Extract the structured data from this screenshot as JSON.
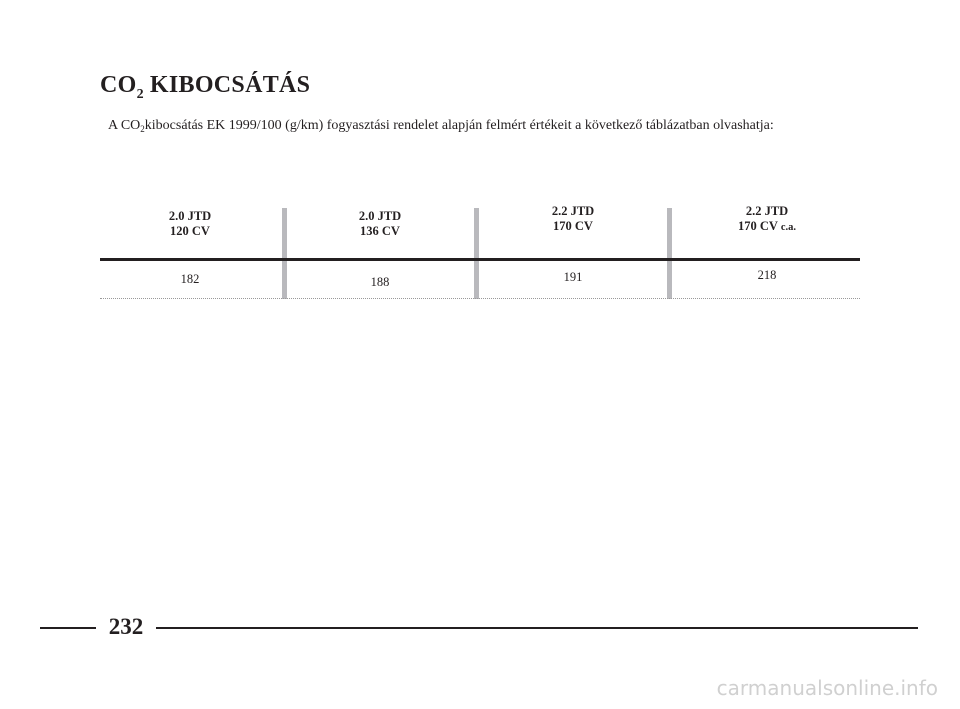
{
  "header": {
    "title": {
      "main": "CO",
      "subscript": "2",
      "rest": "KIBOCSÁTÁS"
    }
  },
  "intro": {
    "before": "A CO",
    "subscript": "2",
    "after": "kibocsátás EK 1999/100 (g/km) fogyasztási rendelet alapján felmért értékeit a következő táblázatban olvashatja:"
  },
  "table": {
    "columns": [
      {
        "model": "2.0 JTD",
        "power": "120 CV",
        "value": 182
      },
      {
        "model": "2.0 JTD",
        "power": "136 CV",
        "value": 188
      },
      {
        "model": "2.2 JTD",
        "power": "170 CV",
        "value": 191
      },
      {
        "model": "2.2 JTD",
        "power": "170 CV",
        "suffix": "c.a.",
        "value": 218
      }
    ]
  },
  "footer": {
    "page_number": "232",
    "watermark": "carmanualsonline.info"
  }
}
